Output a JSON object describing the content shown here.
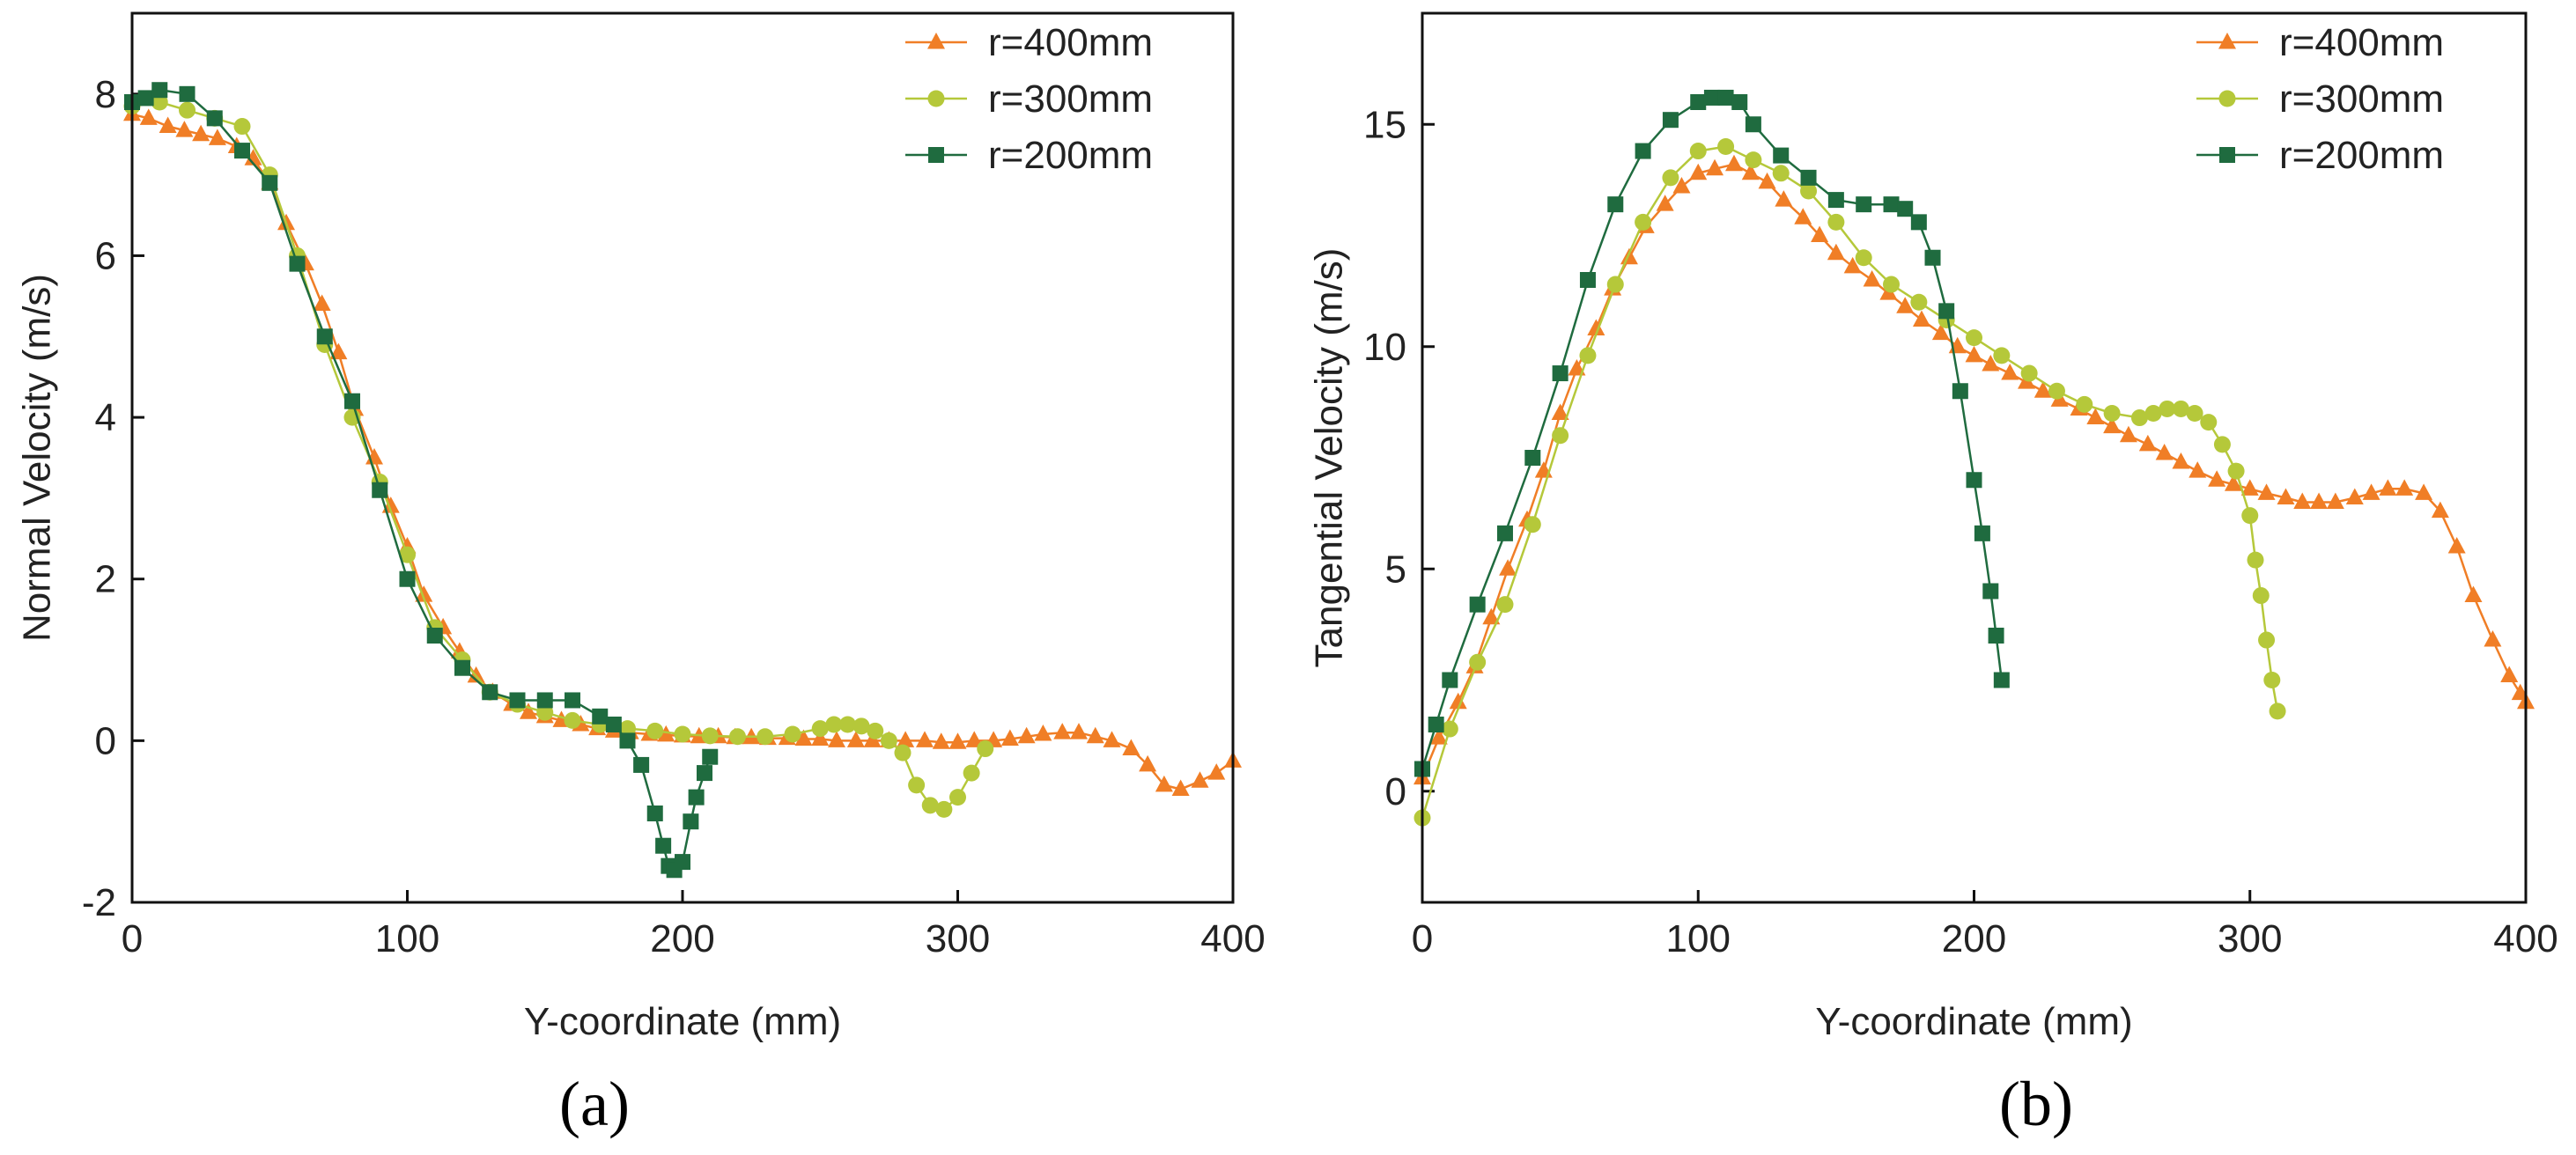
{
  "figure": {
    "panel_a_label": "(a)",
    "panel_b_label": "(b)",
    "series_colors": [
      "#f07e26",
      "#b5c83a",
      "#1f6b3f"
    ],
    "series_markers": [
      "triangle",
      "circle",
      "square"
    ]
  },
  "chart_data": [
    {
      "type": "line",
      "title": "",
      "xlabel": "Y-coordinate (mm)",
      "ylabel": "Normal Velocity (m/s)",
      "xlim": [
        0,
        400
      ],
      "ylim": [
        -2,
        9
      ],
      "xticks": [
        0,
        100,
        200,
        300,
        400
      ],
      "yticks": [
        -2,
        0,
        2,
        4,
        6,
        8
      ],
      "legend_position": "top-right",
      "series": [
        {
          "name": "r=400mm",
          "x": [
            0,
            6,
            13,
            19,
            25,
            31,
            38,
            44,
            50,
            56,
            63,
            69,
            75,
            81,
            88,
            94,
            100,
            106,
            113,
            119,
            125,
            131,
            138,
            144,
            150,
            156,
            163,
            169,
            175,
            181,
            188,
            194,
            200,
            206,
            213,
            219,
            225,
            231,
            238,
            244,
            250,
            256,
            263,
            269,
            275,
            281,
            288,
            294,
            300,
            306,
            313,
            319,
            325,
            331,
            338,
            344,
            350,
            356,
            363,
            369,
            375,
            381,
            388,
            394,
            400
          ],
          "y": [
            7.75,
            7.7,
            7.6,
            7.55,
            7.5,
            7.45,
            7.35,
            7.2,
            6.9,
            6.4,
            5.9,
            5.4,
            4.8,
            4.1,
            3.5,
            2.9,
            2.4,
            1.8,
            1.4,
            1.1,
            0.8,
            0.6,
            0.45,
            0.35,
            0.3,
            0.25,
            0.2,
            0.15,
            0.12,
            0.1,
            0.08,
            0.07,
            0.06,
            0.05,
            0.05,
            0.04,
            0.04,
            0.03,
            0.03,
            0.02,
            0.02,
            0.0,
            0.0,
            0.0,
            0.0,
            0.0,
            0.0,
            -0.02,
            -0.02,
            0.0,
            0.0,
            0.02,
            0.05,
            0.08,
            0.1,
            0.1,
            0.05,
            0.0,
            -0.1,
            -0.3,
            -0.55,
            -0.6,
            -0.5,
            -0.4,
            -0.25
          ]
        },
        {
          "name": "r=300mm",
          "x": [
            0,
            10,
            20,
            30,
            40,
            50,
            60,
            70,
            80,
            90,
            100,
            110,
            120,
            130,
            140,
            150,
            160,
            170,
            180,
            190,
            200,
            210,
            220,
            230,
            240,
            250,
            255,
            260,
            265,
            270,
            275,
            280,
            285,
            290,
            295,
            300,
            305,
            310
          ],
          "y": [
            7.85,
            7.9,
            7.8,
            7.7,
            7.6,
            7.0,
            6.0,
            4.9,
            4.0,
            3.2,
            2.3,
            1.4,
            1.0,
            0.6,
            0.45,
            0.35,
            0.25,
            0.2,
            0.15,
            0.12,
            0.08,
            0.06,
            0.05,
            0.05,
            0.08,
            0.15,
            0.2,
            0.2,
            0.18,
            0.12,
            0.0,
            -0.15,
            -0.55,
            -0.8,
            -0.85,
            -0.7,
            -0.4,
            -0.1
          ]
        },
        {
          "name": "r=200mm",
          "x": [
            0,
            5,
            10,
            20,
            30,
            40,
            50,
            60,
            70,
            80,
            90,
            100,
            110,
            120,
            130,
            140,
            150,
            160,
            170,
            175,
            180,
            185,
            190,
            193,
            195,
            197,
            200,
            203,
            205,
            208,
            210
          ],
          "y": [
            7.9,
            7.95,
            8.05,
            8.0,
            7.7,
            7.3,
            6.9,
            5.9,
            5.0,
            4.2,
            3.1,
            2.0,
            1.3,
            0.9,
            0.6,
            0.5,
            0.5,
            0.5,
            0.3,
            0.2,
            0.0,
            -0.3,
            -0.9,
            -1.3,
            -1.55,
            -1.6,
            -1.5,
            -1.0,
            -0.7,
            -0.4,
            -0.2
          ]
        }
      ]
    },
    {
      "type": "line",
      "title": "",
      "xlabel": "Y-coordinate (mm)",
      "ylabel": "Tangential Velocity (m/s)",
      "xlim": [
        0,
        400
      ],
      "ylim": [
        -2.5,
        17.5
      ],
      "xticks": [
        0,
        100,
        200,
        300,
        400
      ],
      "yticks": [
        0,
        5,
        10,
        15
      ],
      "legend_position": "top-right",
      "series": [
        {
          "name": "r=400mm",
          "x": [
            0,
            6,
            13,
            19,
            25,
            31,
            38,
            44,
            50,
            56,
            63,
            69,
            75,
            81,
            88,
            94,
            100,
            106,
            113,
            119,
            125,
            131,
            138,
            144,
            150,
            156,
            163,
            169,
            175,
            181,
            188,
            194,
            200,
            206,
            213,
            219,
            225,
            231,
            238,
            244,
            250,
            256,
            263,
            269,
            275,
            281,
            288,
            294,
            300,
            306,
            313,
            319,
            325,
            331,
            338,
            344,
            350,
            356,
            363,
            369,
            375,
            381,
            388,
            394,
            398,
            400
          ],
          "y": [
            0.3,
            1.2,
            2.0,
            2.8,
            3.9,
            5.0,
            6.1,
            7.2,
            8.5,
            9.5,
            10.4,
            11.3,
            12.0,
            12.7,
            13.2,
            13.6,
            13.9,
            14.0,
            14.1,
            13.9,
            13.7,
            13.3,
            12.9,
            12.5,
            12.1,
            11.8,
            11.5,
            11.2,
            10.9,
            10.6,
            10.3,
            10.0,
            9.8,
            9.6,
            9.4,
            9.2,
            9.0,
            8.8,
            8.6,
            8.4,
            8.2,
            8.0,
            7.8,
            7.6,
            7.4,
            7.2,
            7.0,
            6.9,
            6.8,
            6.7,
            6.6,
            6.5,
            6.5,
            6.5,
            6.6,
            6.7,
            6.8,
            6.8,
            6.7,
            6.3,
            5.5,
            4.4,
            3.4,
            2.6,
            2.2,
            2.0
          ]
        },
        {
          "name": "r=300mm",
          "x": [
            0,
            10,
            20,
            30,
            40,
            50,
            60,
            70,
            80,
            90,
            100,
            110,
            120,
            130,
            140,
            150,
            160,
            170,
            180,
            190,
            200,
            210,
            220,
            230,
            240,
            250,
            260,
            265,
            270,
            275,
            280,
            285,
            290,
            295,
            300,
            302,
            304,
            306,
            308,
            310
          ],
          "y": [
            -0.6,
            1.4,
            2.9,
            4.2,
            6.0,
            8.0,
            9.8,
            11.4,
            12.8,
            13.8,
            14.4,
            14.5,
            14.2,
            13.9,
            13.5,
            12.8,
            12.0,
            11.4,
            11.0,
            10.6,
            10.2,
            9.8,
            9.4,
            9.0,
            8.7,
            8.5,
            8.4,
            8.5,
            8.6,
            8.6,
            8.5,
            8.3,
            7.8,
            7.2,
            6.2,
            5.2,
            4.4,
            3.4,
            2.5,
            1.8
          ]
        },
        {
          "name": "r=200mm",
          "x": [
            0,
            5,
            10,
            20,
            30,
            40,
            50,
            60,
            70,
            80,
            90,
            100,
            105,
            110,
            115,
            120,
            130,
            140,
            150,
            160,
            170,
            175,
            180,
            185,
            190,
            195,
            200,
            203,
            206,
            208,
            210
          ],
          "y": [
            0.5,
            1.5,
            2.5,
            4.2,
            5.8,
            7.5,
            9.4,
            11.5,
            13.2,
            14.4,
            15.1,
            15.5,
            15.6,
            15.6,
            15.5,
            15.0,
            14.3,
            13.8,
            13.3,
            13.2,
            13.2,
            13.1,
            12.8,
            12.0,
            10.8,
            9.0,
            7.0,
            5.8,
            4.5,
            3.5,
            2.5
          ]
        }
      ]
    }
  ]
}
